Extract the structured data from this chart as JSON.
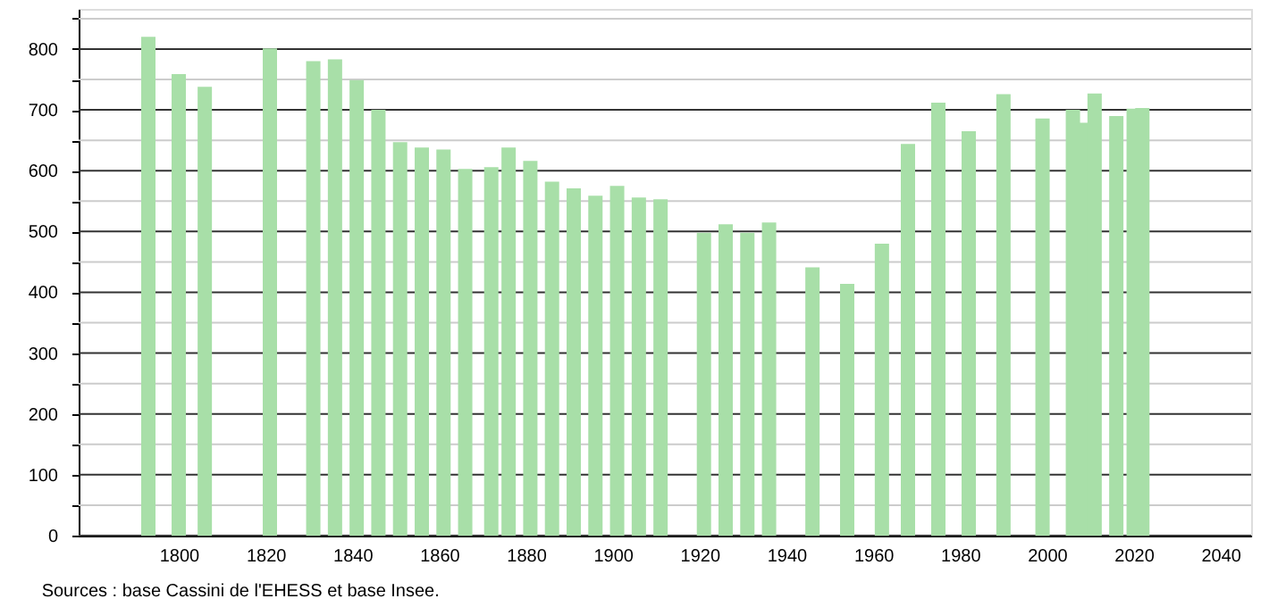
{
  "chart_data": {
    "type": "bar",
    "x": [
      1793,
      1800,
      1806,
      1821,
      1831,
      1836,
      1841,
      1846,
      1851,
      1856,
      1861,
      1866,
      1872,
      1876,
      1881,
      1886,
      1891,
      1896,
      1901,
      1906,
      1911,
      1921,
      1926,
      1931,
      1936,
      1946,
      1954,
      1962,
      1968,
      1975,
      1982,
      1990,
      1999,
      2006,
      2008,
      2011,
      2016,
      2020,
      2022
    ],
    "values": [
      820,
      759,
      738,
      801,
      780,
      783,
      749,
      700,
      647,
      638,
      635,
      603,
      606,
      638,
      616,
      582,
      571,
      559,
      575,
      556,
      553,
      498,
      512,
      498,
      515,
      441,
      414,
      480,
      644,
      712,
      665,
      726,
      686,
      700,
      679,
      727,
      690,
      702,
      703
    ],
    "color": "#a8dfa8",
    "xlim": [
      1779,
      2045
    ],
    "xticks": [
      1800,
      1820,
      1840,
      1860,
      1880,
      1900,
      1920,
      1940,
      1960,
      1980,
      2000,
      2020,
      2040
    ],
    "ylim": [
      0,
      866
    ],
    "yticks": [
      0,
      {
        "value": 50,
        "label": null
      },
      100,
      {
        "value": 150,
        "label": null
      },
      200,
      {
        "value": 250,
        "label": null
      },
      300,
      {
        "value": 350,
        "label": null
      },
      400,
      {
        "value": 450,
        "label": null
      },
      500,
      {
        "value": 550,
        "label": null
      },
      600,
      {
        "value": 650,
        "label": null
      },
      700,
      {
        "value": 750,
        "label": null
      },
      800,
      {
        "value": 850,
        "label": null
      }
    ],
    "grid": "y",
    "annotations": [
      "Sources : base Cassini de l'EHESS et base Insee."
    ]
  }
}
